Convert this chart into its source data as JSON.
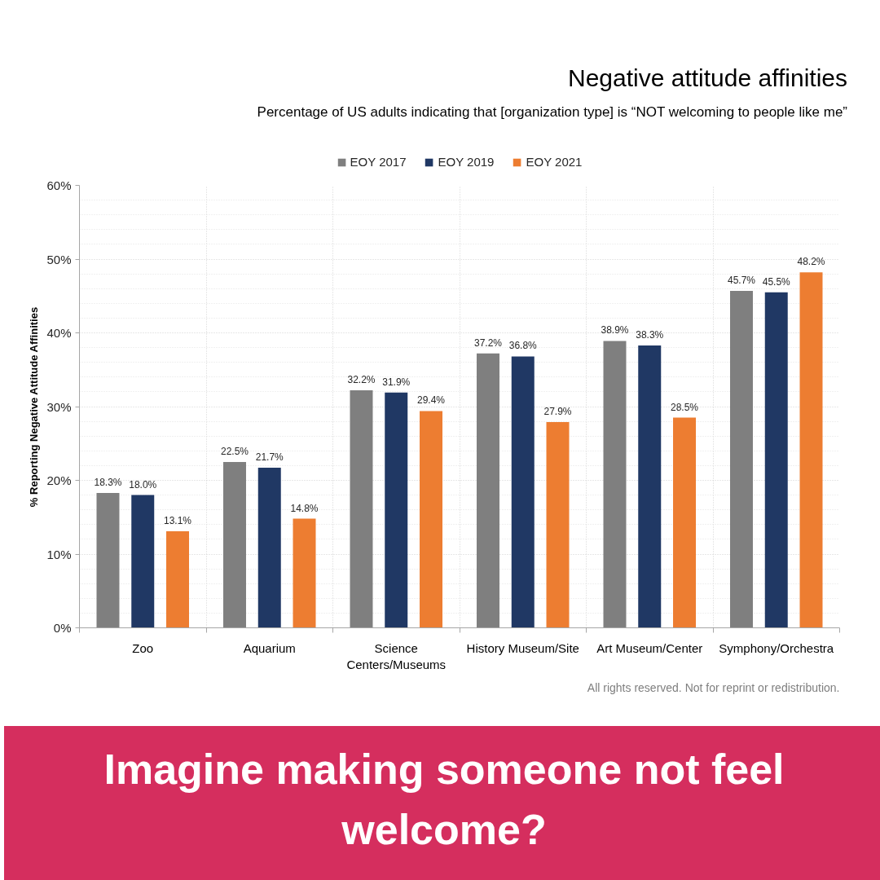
{
  "chart_data": {
    "type": "bar",
    "title": "Negative attitude affinities",
    "subtitle": "Percentage of US adults indicating that [organization type] is “NOT welcoming to people like me”",
    "ylabel": "% Reporting Negative Attitude Affinities",
    "categories": [
      "Zoo",
      "Aquarium",
      "Science Centers/Museums",
      "History Museum/Site",
      "Art Museum/Center",
      "Symphony/Orchestra"
    ],
    "series": [
      {
        "name": "EOY 2017",
        "color": "#7f7f7f",
        "values": [
          18.3,
          22.5,
          32.2,
          37.2,
          38.9,
          45.7
        ],
        "value_labels": [
          "18.3%",
          "22.5%",
          "32.2%",
          "37.2%",
          "38.9%",
          "45.7%"
        ]
      },
      {
        "name": "EOY 2019",
        "color": "#203864",
        "values": [
          18.0,
          21.7,
          31.9,
          36.8,
          38.3,
          45.5
        ],
        "value_labels": [
          "18.0%",
          "21.7%",
          "31.9%",
          "36.8%",
          "38.3%",
          "45.5%"
        ]
      },
      {
        "name": "EOY 2021",
        "color": "#ed7d31",
        "values": [
          13.1,
          14.8,
          29.4,
          27.9,
          28.5,
          48.2
        ],
        "value_labels": [
          "13.1%",
          "14.8%",
          "29.4%",
          "27.9%",
          "28.5%",
          "48.2%"
        ]
      }
    ],
    "ylim": [
      0,
      60
    ],
    "yticks": [
      {
        "value": 0,
        "label": "0%"
      },
      {
        "value": 10,
        "label": "10%"
      },
      {
        "value": 20,
        "label": "20%"
      },
      {
        "value": 30,
        "label": "30%"
      },
      {
        "value": 40,
        "label": "40%"
      },
      {
        "value": 50,
        "label": "50%"
      },
      {
        "value": 60,
        "label": "60%"
      }
    ],
    "grid": true,
    "legend": "top",
    "annotations": [
      "All rights reserved. Not for reprint or redistribution.",
      "Imagine making someone not feel welcome?"
    ]
  }
}
